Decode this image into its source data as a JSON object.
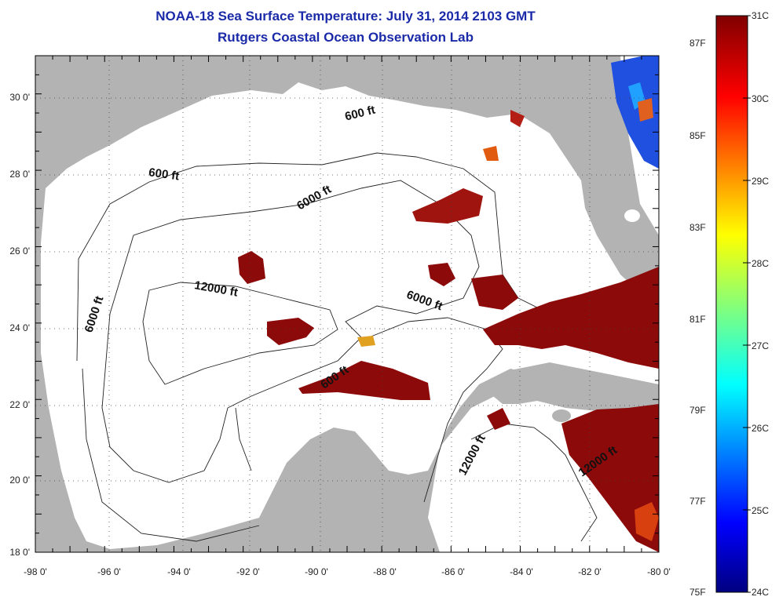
{
  "title": "NOAA-18 Sea Surface Temperature:  July 31, 2014 2103 GMT",
  "subtitle": "Rutgers Coastal Ocean Observation Lab",
  "axes": {
    "x_ticks": [
      "-98 0'",
      "-96 0'",
      "-94 0'",
      "-92 0'",
      "-90 0'",
      "-88 0'",
      "-86 0'",
      "-84 0'",
      "-82 0'",
      "-80 0'"
    ],
    "y_ticks": [
      "30 0'",
      "28 0'",
      "26 0'",
      "24 0'",
      "22 0'",
      "20 0'",
      "18 0'"
    ],
    "lon_range": [
      -98,
      -80
    ],
    "lat_range": [
      18,
      31
    ]
  },
  "contour_labels": [
    {
      "text": "600 ft",
      "lon": -94.3,
      "lat": 27.8,
      "angle": 8
    },
    {
      "text": "600 ft",
      "lon": -88.6,
      "lat": 29.4,
      "angle": -14
    },
    {
      "text": "6000 ft",
      "lon": -89.9,
      "lat": 27.2,
      "angle": -30
    },
    {
      "text": "12000 ft",
      "lon": -92.8,
      "lat": 24.8,
      "angle": 10
    },
    {
      "text": "6000 ft",
      "lon": -86.8,
      "lat": 24.5,
      "angle": 20
    },
    {
      "text": "6000 ft",
      "lon": -96.2,
      "lat": 24.2,
      "angle": -72
    },
    {
      "text": "600 ft",
      "lon": -89.3,
      "lat": 22.5,
      "angle": -35
    },
    {
      "text": "12000 ft",
      "lon": -85.3,
      "lat": 20.5,
      "angle": -62
    },
    {
      "text": "12000 ft",
      "lon": -81.7,
      "lat": 20.3,
      "angle": -35
    }
  ],
  "colorbar": {
    "min_c": 24,
    "max_c": 31,
    "celsius_labels": [
      "31C",
      "30C",
      "29C",
      "28C",
      "27C",
      "26C",
      "25C",
      "24C"
    ],
    "fahrenheit_labels": [
      "87F",
      "85F",
      "83F",
      "81F",
      "79F",
      "77F",
      "75F"
    ]
  },
  "colors": {
    "land": "#b3b3b3",
    "ocean": "#ffffff",
    "title": "#1a2aa8",
    "warm": "#8c0a0a"
  }
}
